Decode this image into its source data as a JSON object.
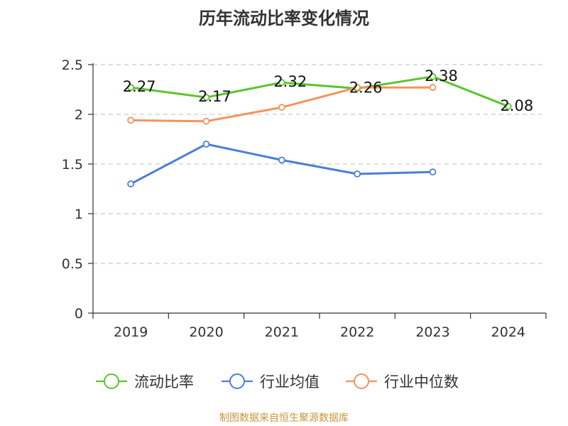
{
  "chart_data": {
    "type": "line",
    "title": "历年流动比率变化情况",
    "categories": [
      "2019",
      "2020",
      "2021",
      "2022",
      "2023",
      "2024"
    ],
    "ylim": [
      0,
      2.5
    ],
    "yticks": [
      "0",
      "0.5",
      "1",
      "1.5",
      "2",
      "2.5"
    ],
    "grid": true,
    "legend_position": "bottom",
    "series": [
      {
        "name": "流动比率",
        "color": "#5bc42d",
        "values": [
          2.27,
          2.17,
          2.32,
          2.26,
          2.38,
          2.08
        ],
        "labels": [
          "2.27",
          "2.17",
          "2.32",
          "2.26",
          "2.38",
          "2.08"
        ]
      },
      {
        "name": "行业均值",
        "color": "#4a7fd6",
        "values": [
          1.3,
          1.7,
          1.54,
          1.4,
          1.42,
          null
        ]
      },
      {
        "name": "行业中位数",
        "color": "#f5935c",
        "values": [
          1.94,
          1.93,
          2.07,
          2.27,
          2.27,
          null
        ]
      }
    ]
  },
  "source": "制图数据来自恒生聚源数据库"
}
